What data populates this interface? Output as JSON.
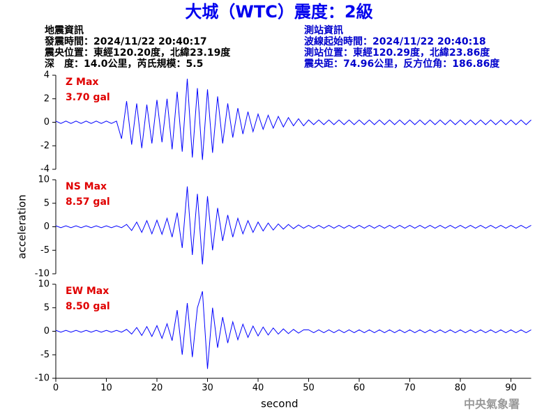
{
  "header": {
    "title": "大城（WTC）震度：2級",
    "left": [
      "地震資訊",
      "發震時間：2024/11/22 20:40:17",
      "震央位置：東經120.20度，北緯23.19度",
      "深　度：14.0公里，芮氏規模：5.5"
    ],
    "right": [
      "測站資訊",
      "波線起始時間：2024/11/22 20:40:18",
      "測站位置：東經120.29度，北緯23.86度",
      "震央距：74.96公里，反方位角：186.86度"
    ]
  },
  "chart_data": [
    {
      "type": "line",
      "annotation": [
        "Z Max",
        "3.70 gal"
      ],
      "color": "#0000ff",
      "xlim": [
        0,
        94
      ],
      "ylim": [
        -4,
        4
      ],
      "yticks": [
        -4,
        -2,
        0,
        2,
        4
      ],
      "x": [
        0,
        1,
        2,
        3,
        4,
        5,
        6,
        7,
        8,
        9,
        10,
        11,
        12,
        13,
        14,
        15,
        16,
        17,
        18,
        19,
        20,
        21,
        22,
        23,
        24,
        25,
        26,
        27,
        28,
        29,
        30,
        31,
        32,
        33,
        34,
        35,
        36,
        37,
        38,
        39,
        40,
        41,
        42,
        43,
        44,
        45,
        46,
        47,
        48,
        49,
        50,
        51,
        52,
        53,
        54,
        55,
        56,
        57,
        58,
        59,
        60,
        61,
        62,
        63,
        64,
        65,
        66,
        67,
        68,
        69,
        70,
        71,
        72,
        73,
        74,
        75,
        76,
        77,
        78,
        79,
        80,
        81,
        82,
        83,
        84,
        85,
        86,
        87,
        88,
        89,
        90,
        91,
        92,
        93,
        94
      ],
      "values": [
        0.1,
        -0.1,
        0.1,
        -0.1,
        0.1,
        -0.1,
        0.1,
        -0.1,
        0.1,
        -0.1,
        0.1,
        -0.1,
        0.1,
        -1.4,
        1.8,
        -1.9,
        1.6,
        -2.2,
        1.5,
        -1.8,
        1.9,
        -1.7,
        2.0,
        -2.3,
        2.6,
        -2.5,
        3.7,
        -3.0,
        2.9,
        -3.2,
        2.8,
        -2.6,
        2.2,
        -1.8,
        1.6,
        -1.3,
        1.2,
        -1.0,
        0.9,
        -0.8,
        0.7,
        -0.6,
        0.6,
        -0.5,
        0.5,
        -0.4,
        0.4,
        -0.3,
        0.3,
        -0.3,
        0.2,
        -0.2,
        0.2,
        -0.2,
        0.2,
        -0.2,
        0.2,
        -0.2,
        0.2,
        -0.2,
        0.2,
        -0.2,
        0.2,
        -0.2,
        0.2,
        -0.2,
        0.2,
        -0.2,
        0.2,
        -0.2,
        0.2,
        -0.2,
        0.2,
        -0.2,
        0.2,
        -0.2,
        0.2,
        -0.2,
        0.2,
        -0.2,
        0.2,
        -0.2,
        0.2,
        -0.2,
        0.2,
        -0.2,
        0.2,
        -0.2,
        0.2,
        -0.2,
        0.2,
        -0.2,
        0.2,
        -0.2,
        0.2
      ]
    },
    {
      "type": "line",
      "annotation": [
        "NS Max",
        "8.57 gal"
      ],
      "y_label": "acceleration",
      "color": "#0000ff",
      "xlim": [
        0,
        94
      ],
      "ylim": [
        -10,
        10
      ],
      "yticks": [
        -10,
        -5,
        0,
        5,
        10
      ],
      "x": [
        0,
        1,
        2,
        3,
        4,
        5,
        6,
        7,
        8,
        9,
        10,
        11,
        12,
        13,
        14,
        15,
        16,
        17,
        18,
        19,
        20,
        21,
        22,
        23,
        24,
        25,
        26,
        27,
        28,
        29,
        30,
        31,
        32,
        33,
        34,
        35,
        36,
        37,
        38,
        39,
        40,
        41,
        42,
        43,
        44,
        45,
        46,
        47,
        48,
        49,
        50,
        51,
        52,
        53,
        54,
        55,
        56,
        57,
        58,
        59,
        60,
        61,
        62,
        63,
        64,
        65,
        66,
        67,
        68,
        69,
        70,
        71,
        72,
        73,
        74,
        75,
        76,
        77,
        78,
        79,
        80,
        81,
        82,
        83,
        84,
        85,
        86,
        87,
        88,
        89,
        90,
        91,
        92,
        93,
        94
      ],
      "values": [
        0.2,
        -0.2,
        0.2,
        -0.2,
        0.2,
        -0.2,
        0.2,
        -0.2,
        0.2,
        -0.2,
        0.2,
        -0.2,
        0.2,
        -0.2,
        0.5,
        -0.8,
        1.0,
        -1.2,
        1.3,
        -1.5,
        1.4,
        -1.6,
        1.8,
        -2.2,
        3.0,
        -4.5,
        8.57,
        -6.0,
        7.0,
        -8.0,
        6.5,
        -5.0,
        4.0,
        -3.0,
        2.5,
        -2.2,
        1.8,
        -1.5,
        1.3,
        -1.2,
        1.0,
        -0.9,
        0.8,
        -0.7,
        0.6,
        -0.5,
        0.5,
        -0.4,
        0.4,
        -0.3,
        0.3,
        -0.3,
        0.3,
        -0.3,
        0.3,
        -0.3,
        0.3,
        -0.3,
        0.3,
        -0.3,
        0.3,
        -0.3,
        0.3,
        -0.3,
        0.3,
        -0.3,
        0.3,
        -0.3,
        0.3,
        -0.3,
        0.3,
        -0.3,
        0.3,
        -0.3,
        0.3,
        -0.3,
        0.3,
        -0.3,
        0.3,
        -0.3,
        0.3,
        -0.3,
        0.3,
        -0.3,
        0.3,
        -0.3,
        0.3,
        -0.3,
        0.3,
        -0.3,
        0.3,
        -0.3,
        0.3,
        -0.3,
        0.3
      ]
    },
    {
      "type": "line",
      "annotation": [
        "EW Max",
        "8.50 gal"
      ],
      "x_label": "second",
      "color": "#0000ff",
      "xlim": [
        0,
        94
      ],
      "ylim": [
        -10,
        10
      ],
      "yticks": [
        -10,
        -5,
        0,
        5,
        10
      ],
      "xticks": [
        0,
        10,
        20,
        30,
        40,
        50,
        60,
        70,
        80,
        90
      ],
      "x": [
        0,
        1,
        2,
        3,
        4,
        5,
        6,
        7,
        8,
        9,
        10,
        11,
        12,
        13,
        14,
        15,
        16,
        17,
        18,
        19,
        20,
        21,
        22,
        23,
        24,
        25,
        26,
        27,
        28,
        29,
        30,
        31,
        32,
        33,
        34,
        35,
        36,
        37,
        38,
        39,
        40,
        41,
        42,
        43,
        44,
        45,
        46,
        47,
        48,
        49,
        50,
        51,
        52,
        53,
        54,
        55,
        56,
        57,
        58,
        59,
        60,
        61,
        62,
        63,
        64,
        65,
        66,
        67,
        68,
        69,
        70,
        71,
        72,
        73,
        74,
        75,
        76,
        77,
        78,
        79,
        80,
        81,
        82,
        83,
        84,
        85,
        86,
        87,
        88,
        89,
        90,
        91,
        92,
        93,
        94
      ],
      "values": [
        0.2,
        -0.2,
        0.2,
        -0.2,
        0.2,
        -0.2,
        0.2,
        -0.2,
        0.2,
        -0.2,
        0.2,
        -0.2,
        0.2,
        -0.2,
        0.4,
        -0.6,
        0.8,
        -0.9,
        1.0,
        -1.1,
        1.2,
        -1.5,
        1.6,
        -2.0,
        4.5,
        -5.0,
        6.0,
        -5.5,
        5.0,
        8.5,
        -8.0,
        5.0,
        -3.5,
        3.0,
        -2.5,
        2.0,
        -1.8,
        1.5,
        -1.3,
        1.1,
        -1.0,
        0.9,
        -0.8,
        0.7,
        -0.6,
        0.5,
        -0.5,
        0.4,
        -0.4,
        0.3,
        0.3,
        -0.3,
        0.3,
        -0.3,
        0.3,
        -0.3,
        0.3,
        -0.3,
        0.3,
        -0.3,
        0.3,
        -0.3,
        0.3,
        -0.3,
        0.3,
        -0.3,
        0.3,
        -0.3,
        0.3,
        -0.3,
        0.3,
        -0.3,
        0.3,
        -0.3,
        0.3,
        -0.3,
        0.3,
        -0.3,
        0.3,
        -0.3,
        0.3,
        -0.3,
        0.3,
        -0.3,
        0.3,
        -0.3,
        0.3,
        -0.3,
        0.3,
        -0.3,
        0.3,
        -0.3,
        0.3,
        -0.3,
        0.3
      ]
    }
  ],
  "footer": "中央氣象署"
}
